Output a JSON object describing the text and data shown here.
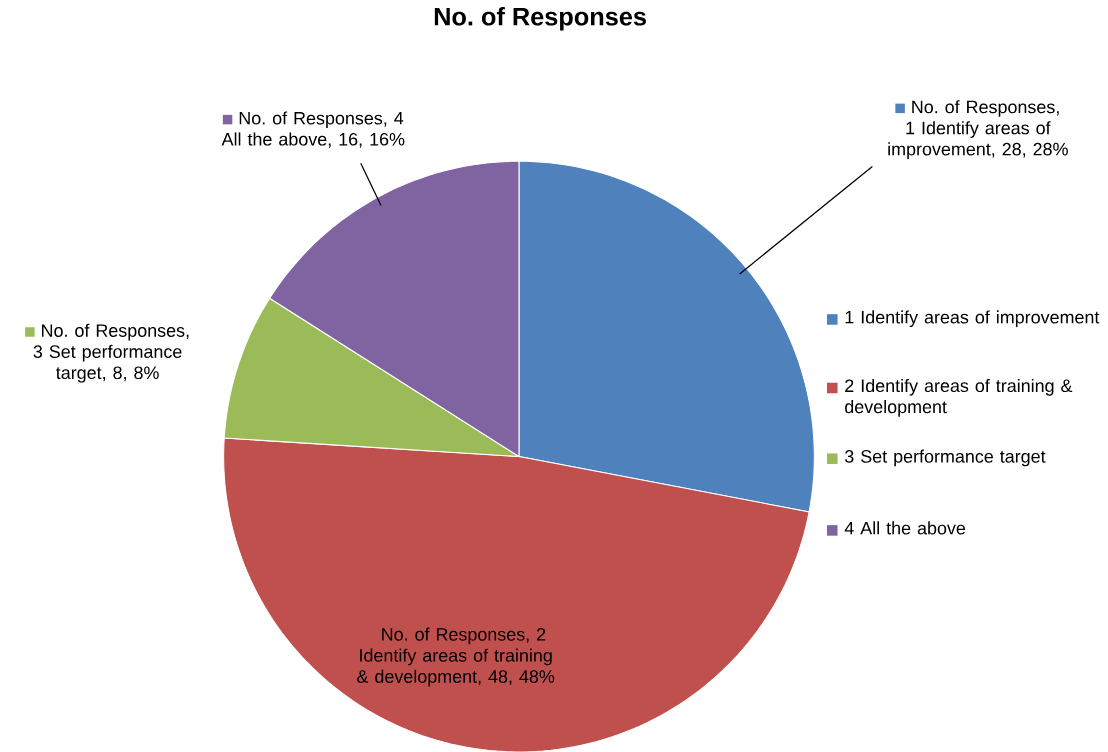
{
  "chart_data": {
    "type": "pie",
    "title": "No. of Responses",
    "categories": [
      "1 Identify areas of improvement",
      "2 Identify areas of training & development",
      "3 Set performance target",
      "4 All the above"
    ],
    "values": [
      28,
      48,
      8,
      16
    ],
    "colors": [
      "#4f81bd",
      "#c0504d",
      "#9bbb59",
      "#8064a2"
    ],
    "value_labels": [
      "No. of Responses, 1 Identify areas of improvement, 28, 28%",
      "No. of Responses, 2 Identify areas of training & development, 48, 48%",
      "No. of Responses, 3 Set performance target, 8, 8%",
      "No. of Responses, 4 All the above, 16, 16%"
    ],
    "legend": "right"
  }
}
